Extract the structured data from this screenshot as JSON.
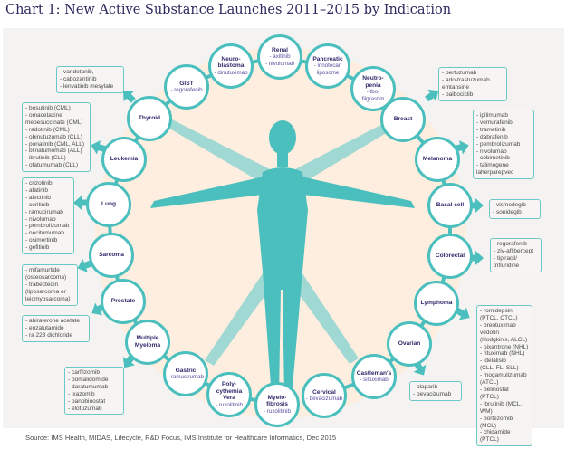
{
  "title": "Chart 1: New Active Substance Launches 2011–2015 by Indication",
  "source": "Source: IMS Health, MIDAS, Lifecycle, R&D Focus, IMS Institute for Healthcare Informatics, Dec 2015",
  "colors": {
    "teal": "#4bbfbd",
    "peach": "#fdeee0",
    "navy": "#2f2a6b",
    "purple": "#5a4fa0"
  },
  "indications": [
    {
      "name": "Renal",
      "drugs": "- axitinib\n- nivolumab"
    },
    {
      "name": "Neuro-\nblastoma",
      "drugs": "- dinutuximab"
    },
    {
      "name": "Pancreatic",
      "drugs": "- irinotecan\nliposome"
    },
    {
      "name": "GIST",
      "drugs": "- regorafenib"
    },
    {
      "name": "Neutro-\npenia",
      "drugs": "- tbo-\nfilgrastim"
    },
    {
      "name": "Thyroid",
      "drugs": "",
      "list": [
        "- vandetanib,",
        "- cabozantinib",
        "- lenvatinib mesylate"
      ]
    },
    {
      "name": "Breast",
      "drugs": "",
      "list": [
        "- pertuzumab",
        "- ado-trastuzumab\n  emtansine",
        "- palbociclib"
      ]
    },
    {
      "name": "Leukemia",
      "drugs": "",
      "list": [
        "- bosutinib (CML)",
        "- omacetaxine\n  mepesuccinate (CML)",
        "- radotinib (CML)",
        "- obinutuzumab (CLL)",
        "- ponatinib (CML, ALL)",
        "- blinatumomab (ALL)",
        "- ibrutinib (CLL)",
        "- ofatumumab (CLL)"
      ]
    },
    {
      "name": "Melanoma",
      "drugs": "",
      "list": [
        "- ipilimumab",
        "- vemurafenib",
        "- trametinib",
        "- dabrafenib",
        "- pembrolizumab",
        "- nivolumab",
        "- cobimetinib",
        "- talimogene\n  laherparepvec"
      ]
    },
    {
      "name": "Lung",
      "drugs": "",
      "list": [
        "- crizotinib",
        "- afatinib",
        "- alectinib",
        "- ceritinib",
        "- ramucirumab",
        "- nivolumab",
        "- pembrolizumab",
        "- necitumumab",
        "- osimertinib",
        "- gefitinib"
      ]
    },
    {
      "name": "Basal cell",
      "drugs": "",
      "list": [
        "- vismodegib",
        "- sonidegib"
      ]
    },
    {
      "name": "Sarcoma",
      "drugs": "",
      "list": [
        "- mifamurtide\n  (osteosarcoma)",
        "- trabectedin\n  (liposarcoma or\n  leiomyosarcoma)"
      ]
    },
    {
      "name": "Colorectal",
      "drugs": "",
      "list": [
        "- regorafenib",
        "- ziv-aflibercept",
        "- tipiracil/\n  trifluridine"
      ]
    },
    {
      "name": "Prostate",
      "drugs": "",
      "list": [
        "- abiraterone acetate",
        "- enzalutamide",
        "- ra 223 dichloride"
      ]
    },
    {
      "name": "Lymphoma",
      "drugs": "",
      "list": [
        "- romidepsin\n  (PTCL, CTCL)",
        "- brentuximab\n  vedotin\n  (Hodgkin's, ALCL)",
        "- pixantrone (NHL)",
        "- rituximab (NHL)",
        "- idelalisib\n  (CLL, FL, SLL)",
        "- mogamulizumab\n  (ATCL)",
        "- belinostat (PTCL)",
        "- ibrutinib (MCL, WM)",
        "- bortezomib (MCL)",
        "- chidamide (PTCL)"
      ]
    },
    {
      "name": "Multiple\nMyeloma",
      "drugs": "",
      "list": [
        "- carfilzomib",
        "- pomalidomide",
        "- daratumumab",
        "- ixazomib",
        "- panobinostat",
        "- elotuzumab"
      ]
    },
    {
      "name": "Ovarian",
      "drugs": "",
      "list": [
        "- olaparib",
        "- bevacizumab"
      ]
    },
    {
      "name": "Gastric",
      "drugs": "- ramucirumab"
    },
    {
      "name": "Castleman's",
      "drugs": "- siltuximab"
    },
    {
      "name": "Poly-\ncythemia\nVera",
      "drugs": "- ruxolitinib"
    },
    {
      "name": "Cervical",
      "drugs": "- bevacizumab"
    },
    {
      "name": "Myelo-\nfibrosis",
      "drugs": "- ruxolitinib"
    }
  ]
}
